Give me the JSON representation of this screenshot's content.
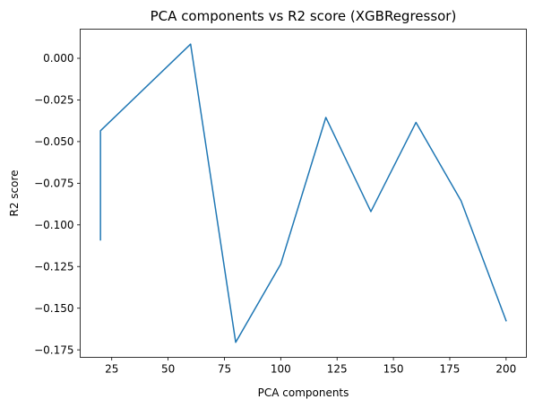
{
  "chart_data": {
    "type": "line",
    "title": "PCA components vs R2 score (XGBRegressor)",
    "xlabel": "PCA components",
    "ylabel": "R2 score",
    "xlim": [
      11,
      209
    ],
    "ylim": [
      -0.1795,
      0.0175
    ],
    "xticks": [
      25,
      50,
      75,
      100,
      125,
      150,
      175,
      200
    ],
    "xtick_labels": [
      "25",
      "50",
      "75",
      "100",
      "125",
      "150",
      "175",
      "200"
    ],
    "yticks": [
      0.0,
      -0.025,
      -0.05,
      -0.075,
      -0.1,
      -0.125,
      -0.15,
      -0.175
    ],
    "ytick_labels": [
      "0.000",
      "−0.025",
      "−0.050",
      "−0.075",
      "−0.100",
      "−0.125",
      "−0.150",
      "−0.175"
    ],
    "grid": false,
    "legend": "none",
    "series": [
      {
        "color": "#1f77b4",
        "x": [
          20,
          20,
          60,
          80,
          100,
          120,
          140,
          160,
          180,
          200
        ],
        "y": [
          -0.109,
          -0.0435,
          0.0085,
          -0.1705,
          -0.1235,
          -0.0355,
          -0.092,
          -0.0385,
          -0.0855,
          -0.1575
        ]
      }
    ]
  }
}
